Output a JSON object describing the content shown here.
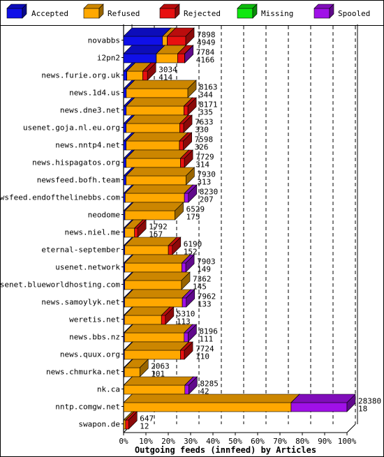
{
  "colors": {
    "accepted": "#1010e8",
    "refused": "#ffa800",
    "rejected": "#e81010",
    "missing": "#10e810",
    "spooled": "#a010e8"
  },
  "legend": [
    {
      "key": "accepted",
      "label": "Accepted"
    },
    {
      "key": "refused",
      "label": "Refused"
    },
    {
      "key": "rejected",
      "label": "Rejected"
    },
    {
      "key": "missing",
      "label": "Missing"
    },
    {
      "key": "spooled",
      "label": "Spooled"
    }
  ],
  "chart_data": {
    "type": "bar",
    "orientation": "horizontal",
    "stacked": true,
    "xlabel": "Outgoing feeds (innfeed) by Articles",
    "xticks": [
      "0%",
      "10%",
      "20%",
      "30%",
      "40%",
      "50%",
      "60%",
      "70%",
      "80%",
      "90%",
      "100%"
    ],
    "xlim": [
      0,
      28380
    ],
    "series_names": [
      "Accepted",
      "Refused",
      "Rejected",
      "Missing",
      "Spooled"
    ],
    "rows": [
      {
        "name": "novabbs",
        "total": "7898",
        "second": "4949",
        "accepted": 4949,
        "refused": 600,
        "rejected": 2349,
        "missing": 0,
        "spooled": 0
      },
      {
        "name": "i2pn2",
        "total": "7784",
        "second": "4166",
        "accepted": 4166,
        "refused": 2700,
        "rejected": 900,
        "missing": 0,
        "spooled": 18
      },
      {
        "name": "news.furie.org.uk",
        "total": "3034",
        "second": "414",
        "accepted": 414,
        "refused": 2020,
        "rejected": 600,
        "missing": 0,
        "spooled": 0
      },
      {
        "name": "news.1d4.us",
        "total": "8163",
        "second": "344",
        "accepted": 344,
        "refused": 7819,
        "rejected": 0,
        "missing": 0,
        "spooled": 0
      },
      {
        "name": "news.dne3.net",
        "total": "8171",
        "second": "335",
        "accepted": 335,
        "refused": 7336,
        "rejected": 500,
        "missing": 0,
        "spooled": 0
      },
      {
        "name": "usenet.goja.nl.eu.org",
        "total": "7633",
        "second": "330",
        "accepted": 330,
        "refused": 6803,
        "rejected": 500,
        "missing": 0,
        "spooled": 0
      },
      {
        "name": "news.nntp4.net",
        "total": "7598",
        "second": "326",
        "accepted": 326,
        "refused": 6772,
        "rejected": 500,
        "missing": 0,
        "spooled": 0
      },
      {
        "name": "news.hispagatos.org",
        "total": "7729",
        "second": "314",
        "accepted": 314,
        "refused": 6915,
        "rejected": 500,
        "missing": 0,
        "spooled": 0
      },
      {
        "name": "newsfeed.bofh.team",
        "total": "7930",
        "second": "313",
        "accepted": 313,
        "refused": 7617,
        "rejected": 0,
        "missing": 0,
        "spooled": 0
      },
      {
        "name": "newsfeed.endofthelinebbs.com",
        "total": "8230",
        "second": "207",
        "accepted": 207,
        "refused": 7523,
        "rejected": 0,
        "missing": 0,
        "spooled": 500
      },
      {
        "name": "neodome",
        "total": "6529",
        "second": "175",
        "accepted": 175,
        "refused": 6354,
        "rejected": 0,
        "missing": 0,
        "spooled": 0
      },
      {
        "name": "news.niel.me",
        "total": "1792",
        "second": "157",
        "accepted": 157,
        "refused": 1235,
        "rejected": 400,
        "missing": 0,
        "spooled": 0
      },
      {
        "name": "eternal-september",
        "total": "6190",
        "second": "152",
        "accepted": 152,
        "refused": 5538,
        "rejected": 500,
        "missing": 0,
        "spooled": 0
      },
      {
        "name": "usenet.network",
        "total": "7903",
        "second": "149",
        "accepted": 149,
        "refused": 7254,
        "rejected": 0,
        "missing": 0,
        "spooled": 500
      },
      {
        "name": "usenet.blueworldhosting.com",
        "total": "7362",
        "second": "145",
        "accepted": 145,
        "refused": 7217,
        "rejected": 0,
        "missing": 0,
        "spooled": 0
      },
      {
        "name": "news.samoylyk.net",
        "total": "7962",
        "second": "133",
        "accepted": 133,
        "refused": 7329,
        "rejected": 0,
        "missing": 0,
        "spooled": 500
      },
      {
        "name": "weretis.net",
        "total": "5310",
        "second": "113",
        "accepted": 113,
        "refused": 4697,
        "rejected": 500,
        "missing": 0,
        "spooled": 0
      },
      {
        "name": "news.bbs.nz",
        "total": "8196",
        "second": "111",
        "accepted": 111,
        "refused": 7585,
        "rejected": 0,
        "missing": 0,
        "spooled": 500
      },
      {
        "name": "news.quux.org",
        "total": "7724",
        "second": "110",
        "accepted": 110,
        "refused": 7114,
        "rejected": 500,
        "missing": 0,
        "spooled": 0
      },
      {
        "name": "news.chmurka.net",
        "total": "2063",
        "second": "101",
        "accepted": 101,
        "refused": 1962,
        "rejected": 0,
        "missing": 0,
        "spooled": 0
      },
      {
        "name": "nk.ca",
        "total": "8285",
        "second": "42",
        "accepted": 42,
        "refused": 7743,
        "rejected": 0,
        "missing": 0,
        "spooled": 500
      },
      {
        "name": "nntp.comgw.net",
        "total": "28380",
        "second": "18",
        "accepted": 18,
        "refused": 21262,
        "rejected": 0,
        "missing": 0,
        "spooled": 7100
      },
      {
        "name": "swapon.de",
        "total": "647",
        "second": "12",
        "accepted": 12,
        "refused": 235,
        "rejected": 400,
        "missing": 0,
        "spooled": 0
      }
    ]
  }
}
